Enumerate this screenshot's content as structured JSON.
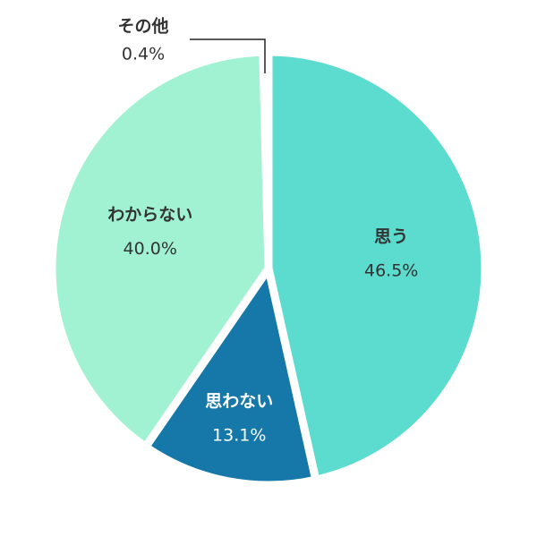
{
  "chart_data": {
    "type": "pie",
    "categories": [
      "思う",
      "思わない",
      "わからない",
      "その他"
    ],
    "values": [
      46.5,
      13.1,
      40.0,
      0.4
    ],
    "value_labels": [
      "46.5%",
      "13.1%",
      "40.0%",
      "0.4%"
    ],
    "colors": [
      "#5cdbcf",
      "#1578a8",
      "#a0f2d2",
      "#b8ece0"
    ],
    "label_colors": [
      "#333333",
      "#ffffff",
      "#333333",
      "#333333"
    ]
  }
}
